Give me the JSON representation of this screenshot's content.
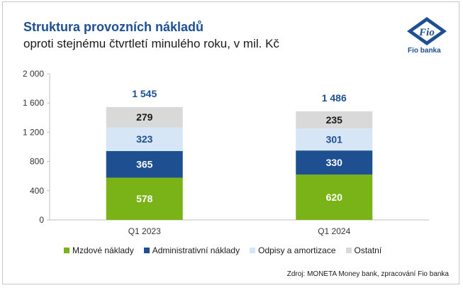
{
  "header": {
    "title": "Struktura provozních nákladů",
    "subtitle": "oproti stejnému čtvrtletí minulého roku, v mil. Kč"
  },
  "logo": {
    "mark": "Fio",
    "name": "Fio banka",
    "icon": "fio-logo-icon"
  },
  "source": "Zdroj: MONETA Money bank, zpracování Fio banka",
  "chart_data": {
    "type": "bar",
    "stacked": true,
    "categories": [
      "Q1 2023",
      "Q1 2024"
    ],
    "series": [
      {
        "name": "Mzdové náklady",
        "values": [
          578,
          620
        ],
        "color": "#7ab317",
        "label_color": "#ffffff"
      },
      {
        "name": "Administrativní náklady",
        "values": [
          365,
          330
        ],
        "color": "#1d4f91",
        "label_color": "#ffffff"
      },
      {
        "name": "Odpisy a amortizace",
        "values": [
          323,
          301
        ],
        "color": "#d6e6f7",
        "label_color": "#1d4f91"
      },
      {
        "name": "Ostatní",
        "values": [
          279,
          235
        ],
        "color": "#d9d9d9",
        "label_color": "#1a1a1a"
      }
    ],
    "totals": [
      "1 545",
      "1 486"
    ],
    "segment_labels": [
      [
        "578",
        "365",
        "323",
        "279"
      ],
      [
        "620",
        "330",
        "301",
        "235"
      ]
    ],
    "y_ticks": [
      "0",
      "400",
      "800",
      "1 200",
      "1 600",
      "2 000"
    ],
    "ylim": [
      0,
      2000
    ],
    "grid": false,
    "legend_position": "bottom"
  }
}
